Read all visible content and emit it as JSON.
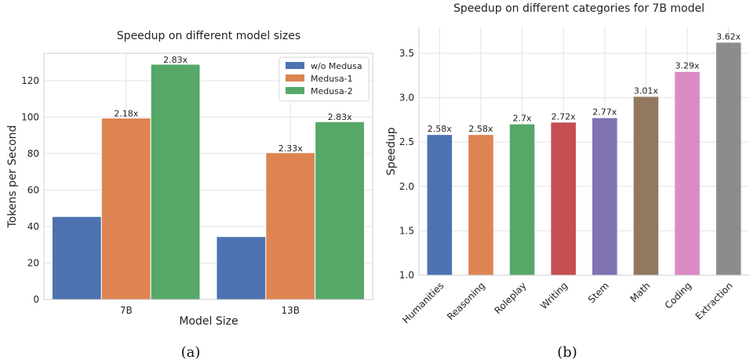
{
  "captions": {
    "left": "(a)",
    "right": "(b)"
  },
  "chart_data": [
    {
      "type": "bar",
      "title": "Speedup on different model sizes",
      "xlabel": "Model Size",
      "ylabel": "Tokens per Second",
      "categories": [
        "7B",
        "13B"
      ],
      "ylim": [
        0,
        135
      ],
      "yticks": [
        0,
        20,
        40,
        60,
        80,
        100,
        120
      ],
      "grid": true,
      "legend_position": "top-right",
      "series": [
        {
          "name": "w/o Medusa",
          "color": "#4c72b0",
          "values": [
            45.5,
            34.5
          ],
          "labels": [
            "",
            ""
          ]
        },
        {
          "name": "Medusa-1",
          "color": "#dd8452",
          "values": [
            99.5,
            80.5
          ],
          "labels": [
            "2.18x",
            "2.33x"
          ]
        },
        {
          "name": "Medusa-2",
          "color": "#55a868",
          "values": [
            129,
            97.5
          ],
          "labels": [
            "2.83x",
            "2.83x"
          ]
        }
      ]
    },
    {
      "type": "bar",
      "title": "Speedup on different categories for 7B model",
      "xlabel": "",
      "ylabel": "Speedup",
      "categories": [
        "Humanities",
        "Reasoning",
        "Roleplay",
        "Writing",
        "Stem",
        "Math",
        "Coding",
        "Extraction"
      ],
      "values": [
        2.58,
        2.58,
        2.7,
        2.72,
        2.77,
        3.01,
        3.29,
        3.62
      ],
      "labels": [
        "2.58x",
        "2.58x",
        "2.7x",
        "2.72x",
        "2.77x",
        "3.01x",
        "3.29x",
        "3.62x"
      ],
      "colors": [
        "#4c72b0",
        "#dd8452",
        "#55a868",
        "#c44e52",
        "#8172b3",
        "#937860",
        "#da8bc3",
        "#8c8c8c"
      ],
      "ylim": [
        1.0,
        3.8
      ],
      "yticks": [
        1.0,
        1.5,
        2.0,
        2.5,
        3.0,
        3.5
      ],
      "ytick_labels": [
        "1.0",
        "1.5",
        "2.0",
        "2.5",
        "3.0",
        "3.5"
      ],
      "grid": true
    }
  ]
}
